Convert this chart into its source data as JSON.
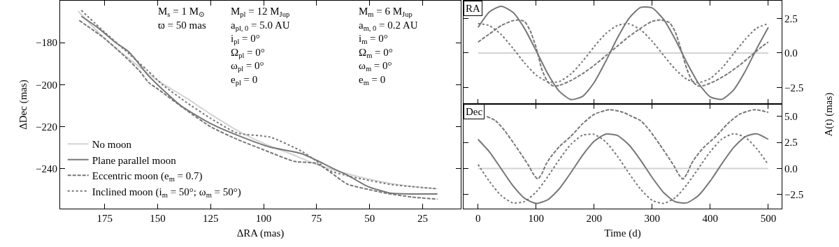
{
  "chart_data": [
    {
      "type": "line",
      "xlabel": "ΔRA (mas)",
      "ylabel": "ΔDec (mas)",
      "xlim": [
        196,
        7
      ],
      "ylim": [
        -259,
        -160
      ],
      "xticks": [
        175,
        150,
        125,
        100,
        75,
        50,
        25
      ],
      "yticks": [
        {
          "value": -240,
          "label": "−240"
        },
        {
          "value": -220,
          "label": "−220"
        },
        {
          "value": -200,
          "label": "−200"
        },
        {
          "value": -180,
          "label": "−180"
        }
      ],
      "legend": "bottom left",
      "grid": false,
      "annotations": [
        "M$_{s}$ = 1 M$_{⊙}$\nϖ = 50 mas",
        "M$_{pl}$ = 12 M$_{Jup}$\na$_{pl, 0}$ = 5.0 AU\ni$_{pl}$ = 0°\nΩ$_{pl}$ = 0°\nω$_{pl}$ = 0°\ne$_{pl}$ = 0",
        "M$_{m}$ = 6 M$_{Jup}$\na$_{m, 0}$ = 0.2 AU\ni$_{m}$ = 0°\nΩ$_{m}$ = 0°\nω$_{m}$ = 0°\ne$_{m}$ = 0"
      ],
      "series": [
        {
          "name": "No moon",
          "color": "#d3d3d3",
          "line_style": "solid",
          "x": [
            187.5,
            175,
            158,
            150,
            137,
            125,
            112,
            100,
            87,
            75,
            62,
            50,
            37,
            25,
            18
          ],
          "values": [
            -165,
            -178,
            -192,
            -198,
            -206,
            -214,
            -222,
            -228,
            -233,
            -238,
            -242,
            -245,
            -247.5,
            -249,
            -249.5
          ]
        },
        {
          "name": "Plane parallel moon",
          "color": "#777777",
          "line_style": "solid",
          "x": [
            186,
            178,
            169.5,
            164,
            159.6,
            155,
            150,
            139,
            125,
            112.5,
            97,
            88,
            81.5,
            75,
            68,
            60.6,
            50.8,
            39.8,
            30,
            18
          ],
          "values": [
            -167.4,
            -173,
            -180.2,
            -184,
            -189,
            -195,
            -200,
            -210,
            -218.5,
            -224,
            -229.7,
            -231.5,
            -233,
            -236,
            -239.5,
            -243,
            -248.5,
            -251.7,
            -252,
            -252
          ]
        },
        {
          "name": "Eccentric moon (e$_{m}$ = 0.7)",
          "color": "#777777",
          "line_style": "dashed",
          "x": [
            187,
            175,
            165,
            158.6,
            154.2,
            150,
            136.6,
            125,
            112.5,
            100,
            85.5,
            75,
            68,
            60.6,
            50,
            42,
            30,
            18
          ],
          "values": [
            -169.4,
            -178,
            -187,
            -193.4,
            -199,
            -202,
            -212,
            -220,
            -226,
            -231,
            -236.5,
            -237.5,
            -242,
            -247.3,
            -250,
            -251.7,
            -253.5,
            -254.5
          ]
        },
        {
          "name": "Inclined moon (i$_{m}$ = 50°; ω$_{m}$ = 50°)",
          "color": "#777777",
          "line_style": "dotted",
          "x": [
            186,
            175,
            163,
            155,
            147.7,
            137,
            125,
            112.5,
            96.8,
            81.5,
            75,
            69.4,
            60,
            53,
            40,
            30,
            18
          ],
          "values": [
            -164.6,
            -175,
            -185.7,
            -193,
            -200,
            -208,
            -216,
            -223,
            -225,
            -232,
            -236.5,
            -240.7,
            -243.5,
            -245,
            -247.5,
            -248.5,
            -249.5
          ]
        }
      ]
    },
    {
      "type": "line",
      "ylabel": "A(t) (mas)",
      "tick_labels": "y",
      "grid": false,
      "xlim": [
        -25,
        523
      ],
      "ylim": [
        -3.7,
        3.8
      ],
      "xticks": [
        {
          "value": 0,
          "label": null
        },
        {
          "value": 100,
          "label": null
        },
        {
          "value": 200,
          "label": null
        },
        {
          "value": 300,
          "label": null
        },
        {
          "value": 400,
          "label": null
        },
        {
          "value": 500,
          "label": null
        }
      ],
      "yticks": [
        {
          "value": -2.5,
          "label": "−2.5"
        },
        {
          "value": 0,
          "label": "0.0"
        },
        {
          "value": 2.5,
          "label": "2.5"
        }
      ],
      "annotations": [
        "RA"
      ],
      "series": [
        {
          "color": "#d3d3d3",
          "line_style": "solid",
          "x": [
            0,
            500
          ],
          "values": [
            0,
            0
          ]
        },
        {
          "color": "#777777",
          "line_style": "solid",
          "x": [
            0,
            20,
            40,
            60,
            80,
            100,
            120,
            140,
            160,
            180,
            200,
            220,
            240,
            260,
            280,
            300,
            320,
            340,
            360,
            380,
            400,
            420,
            440,
            460,
            480,
            500
          ],
          "values": [
            1.86,
            3.0,
            3.4,
            2.96,
            1.78,
            0.17,
            -1.49,
            -2.78,
            -3.38,
            -3.15,
            -2.14,
            -0.6,
            1.09,
            2.52,
            3.31,
            3.27,
            2.42,
            0.96,
            -0.72,
            -2.22,
            -3.19,
            -3.36,
            -2.69,
            -1.34,
            0.32,
            1.86
          ]
        },
        {
          "color": "#777777",
          "line_style": "dashed",
          "x": [
            0,
            20,
            40,
            60,
            70,
            80,
            90,
            100,
            110,
            120,
            130,
            140,
            160,
            180,
            200,
            220,
            240,
            260,
            280,
            300,
            316,
            330,
            340,
            350,
            360,
            370,
            380,
            390,
            410,
            430,
            450,
            470,
            490,
            500
          ],
          "values": [
            0.8,
            1.4,
            2.0,
            2.35,
            2.4,
            2.3,
            1.6,
            0.4,
            -1.2,
            -2.1,
            -2.4,
            -2.35,
            -2.0,
            -1.5,
            -0.9,
            -0.2,
            0.5,
            1.2,
            1.8,
            2.3,
            2.4,
            2.2,
            1.5,
            0.2,
            -1.2,
            -2.1,
            -2.4,
            -2.35,
            -2.0,
            -1.5,
            -0.9,
            -0.2,
            0.5,
            0.8
          ]
        },
        {
          "color": "#777777",
          "line_style": "dotted",
          "x": [
            0,
            20,
            40,
            60,
            80,
            100,
            120,
            140,
            160,
            180,
            200,
            220,
            240,
            260,
            280,
            300,
            320,
            340,
            360,
            380,
            400,
            420,
            440,
            460,
            480,
            500
          ],
          "values": [
            2.14,
            1.98,
            1.33,
            0.35,
            -0.72,
            -1.6,
            -2.09,
            -2.07,
            -1.52,
            -0.61,
            0.46,
            1.41,
            2.0,
            2.12,
            1.69,
            0.85,
            -0.19,
            -1.2,
            -1.92,
            -2.15,
            -1.85,
            -1.09,
            -0.06,
            0.98,
            1.81,
            2.14
          ]
        }
      ]
    },
    {
      "type": "line",
      "xlabel": "Time (d)",
      "grid": false,
      "xlim": [
        -25,
        523
      ],
      "ylim": [
        -3.85,
        6.2
      ],
      "xticks": [
        0,
        100,
        200,
        300,
        400,
        500
      ],
      "yticks": [
        {
          "value": -2.5,
          "label": "−2.5"
        },
        {
          "value": 0,
          "label": "0.0"
        },
        {
          "value": 2.5,
          "label": "2.5"
        },
        {
          "value": 5,
          "label": "5.0"
        }
      ],
      "annotations": [
        "Dec"
      ],
      "series": [
        {
          "color": "#d3d3d3",
          "line_style": "solid",
          "x": [
            0,
            500
          ],
          "values": [
            0,
            0
          ]
        },
        {
          "color": "#777777",
          "line_style": "solid",
          "x": [
            0,
            20,
            40,
            60,
            80,
            100,
            120,
            140,
            160,
            180,
            200,
            220,
            240,
            260,
            280,
            300,
            320,
            340,
            360,
            380,
            400,
            420,
            440,
            460,
            480,
            500
          ],
          "values": [
            2.8,
            1.57,
            -0.04,
            -1.65,
            -2.85,
            -3.35,
            -3.01,
            -1.94,
            -0.38,
            1.27,
            2.61,
            3.3,
            3.18,
            2.26,
            0.8,
            -0.87,
            -2.33,
            -3.2,
            -3.29,
            -2.57,
            -1.2,
            0.46,
            2.0,
            3.05,
            3.34,
            2.8
          ]
        },
        {
          "color": "#777777",
          "line_style": "dashed",
          "x": [
            15,
            30,
            45,
            63,
            80,
            88,
            96,
            103,
            110,
            117,
            125,
            140,
            160,
            180,
            200,
            226,
            250,
            265,
            280,
            295,
            313,
            330,
            338,
            346,
            353,
            360,
            367,
            375,
            390,
            410,
            430,
            450,
            476,
            500
          ],
          "values": [
            5.0,
            4.6,
            3.7,
            2.3,
            0.9,
            0.2,
            -0.6,
            -1.0,
            -0.5,
            0.4,
            1.1,
            2.1,
            3.1,
            4.3,
            5.2,
            5.65,
            5.4,
            5.0,
            4.6,
            3.7,
            2.3,
            0.9,
            0.2,
            -0.6,
            -1.0,
            -0.5,
            0.4,
            1.1,
            2.1,
            3.1,
            4.3,
            5.2,
            5.65,
            5.4
          ]
        },
        {
          "color": "#777777",
          "line_style": "dotted",
          "x": [
            0,
            20,
            40,
            60,
            80,
            100,
            120,
            140,
            160,
            180,
            200,
            220,
            240,
            260,
            280,
            300,
            320,
            340,
            360,
            380,
            400,
            420,
            440,
            460,
            480,
            500
          ],
          "values": [
            0.38,
            -1.27,
            -2.61,
            -3.3,
            -3.17,
            -2.26,
            -0.79,
            0.87,
            2.33,
            3.2,
            3.28,
            2.56,
            1.19,
            -0.46,
            -1.98,
            -3.06,
            -3.34,
            -2.79,
            -1.53,
            0.04,
            1.62,
            2.83,
            3.34,
            3.01,
            1.91,
            0.38
          ]
        }
      ]
    }
  ]
}
